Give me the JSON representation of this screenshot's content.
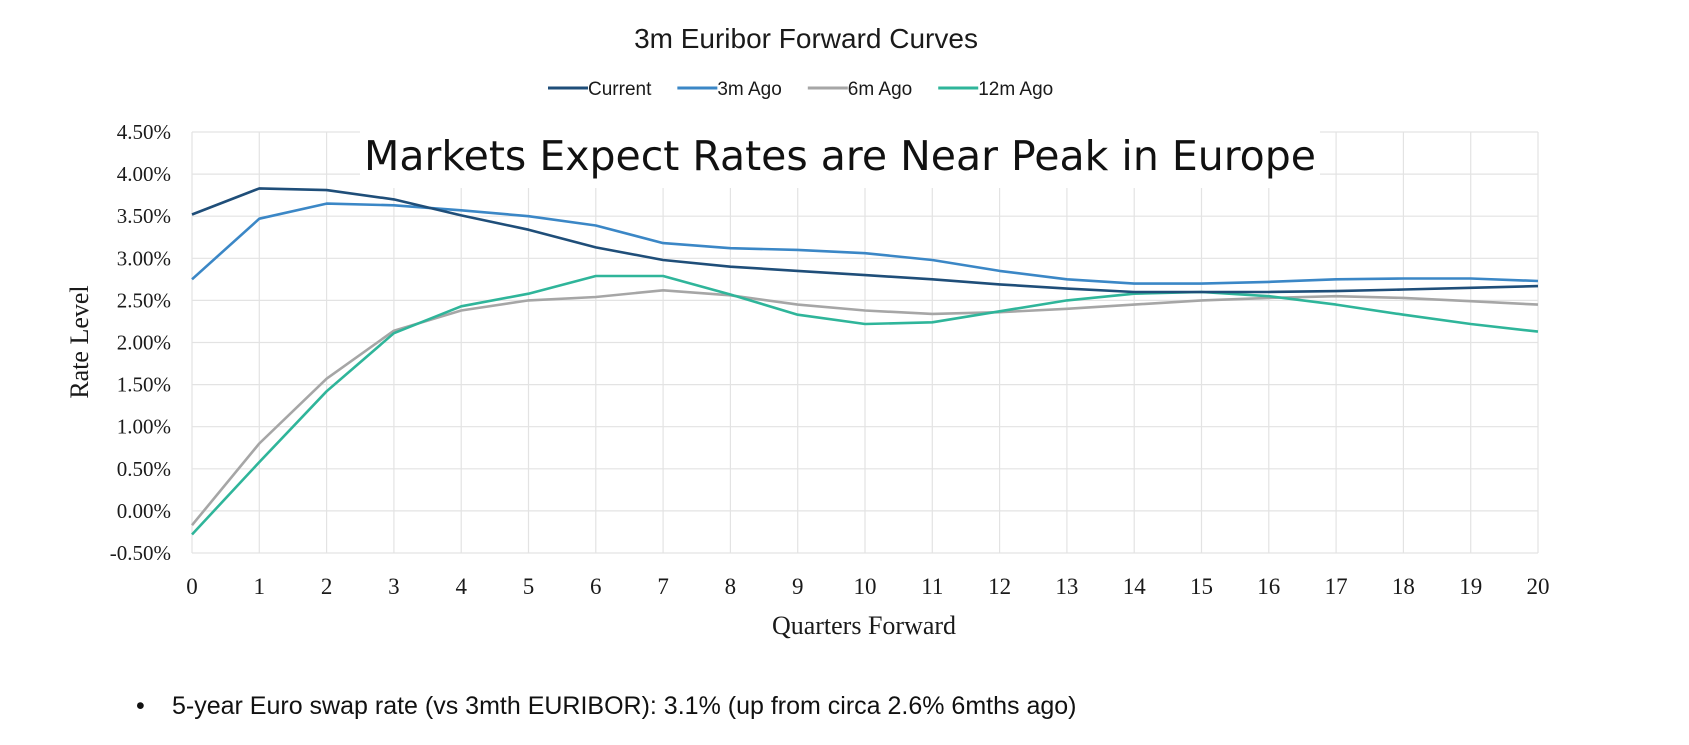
{
  "overlay_title": "Markets Expect Rates are Near Peak in Europe",
  "footnote": {
    "bullet": "•",
    "text": "5-year Euro swap rate (vs 3mth EURIBOR): 3.1% (up from circa 2.6% 6mths ago)"
  },
  "chart_data": {
    "type": "line",
    "title": "3m Euribor Forward Curves",
    "xlabel": "Quarters Forward",
    "ylabel": "Rate Level",
    "x": [
      0,
      1,
      2,
      3,
      4,
      5,
      6,
      7,
      8,
      9,
      10,
      11,
      12,
      13,
      14,
      15,
      16,
      17,
      18,
      19,
      20
    ],
    "xlim": [
      0,
      20
    ],
    "ylim": [
      -0.005,
      0.045
    ],
    "yticks": [
      -0.005,
      0.0,
      0.005,
      0.01,
      0.015,
      0.02,
      0.025,
      0.03,
      0.035,
      0.04,
      0.045
    ],
    "ytick_labels": [
      "-0.50%",
      "0.00%",
      "0.50%",
      "1.00%",
      "1.50%",
      "2.00%",
      "2.50%",
      "3.00%",
      "3.50%",
      "4.00%",
      "4.50%"
    ],
    "xtick_labels": [
      "0",
      "1",
      "2",
      "3",
      "4",
      "5",
      "6",
      "7",
      "8",
      "9",
      "10",
      "11",
      "12",
      "13",
      "14",
      "15",
      "16",
      "17",
      "18",
      "19",
      "20"
    ],
    "grid": true,
    "legend_position": "top-center",
    "series": [
      {
        "name": "Current",
        "color": "#1f4e79",
        "values": [
          0.0352,
          0.0383,
          0.0381,
          0.037,
          0.0351,
          0.0334,
          0.0313,
          0.0298,
          0.029,
          0.0285,
          0.028,
          0.0275,
          0.0269,
          0.0264,
          0.026,
          0.026,
          0.026,
          0.0261,
          0.0263,
          0.0265,
          0.0267
        ]
      },
      {
        "name": "3m Ago",
        "color": "#3b87c6",
        "values": [
          0.0275,
          0.0347,
          0.0365,
          0.0363,
          0.0357,
          0.035,
          0.0339,
          0.0318,
          0.0312,
          0.031,
          0.0306,
          0.0298,
          0.0285,
          0.0275,
          0.027,
          0.027,
          0.0272,
          0.0275,
          0.0276,
          0.0276,
          0.0273
        ]
      },
      {
        "name": "6m Ago",
        "color": "#a6a6a6",
        "values": [
          -0.0017,
          0.008,
          0.0157,
          0.0214,
          0.0238,
          0.025,
          0.0254,
          0.0262,
          0.0256,
          0.0245,
          0.0238,
          0.0234,
          0.0236,
          0.024,
          0.0245,
          0.025,
          0.0253,
          0.0255,
          0.0253,
          0.0249,
          0.0245
        ]
      },
      {
        "name": "12m Ago",
        "color": "#2fb59a",
        "values": [
          -0.0028,
          0.0058,
          0.0142,
          0.0211,
          0.0243,
          0.0258,
          0.0279,
          0.0279,
          0.0257,
          0.0233,
          0.0222,
          0.0224,
          0.0237,
          0.025,
          0.0258,
          0.026,
          0.0255,
          0.0245,
          0.0233,
          0.0222,
          0.0213
        ]
      }
    ]
  }
}
